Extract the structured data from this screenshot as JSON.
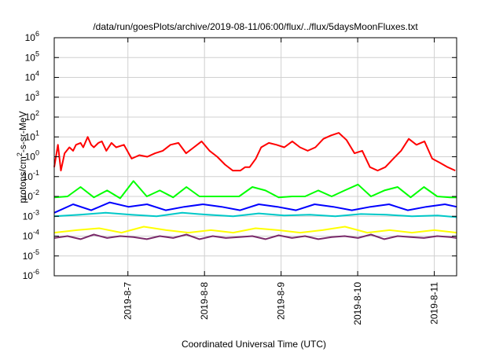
{
  "chart_data": {
    "type": "line",
    "title": "/data/run/goesPlots/archive/2019-08-11/06:00/flux/../flux/5daysMoonFluxes.txt",
    "xlabel": "Coordinated Universal Time (UTC)",
    "ylabel": {
      "prefix": "protons/cm",
      "sup": "2",
      "suffix": "-s-sr-MeV"
    },
    "x_unit": "days (UTC)",
    "xlim": [
      "2019-08-06 00:55",
      "2019-08-11 07:00"
    ],
    "x_ticks": [
      {
        "date": "2019-08-07 00:00",
        "label": "2019-8-7"
      },
      {
        "date": "2019-08-08 00:00",
        "label": "2019-8-8"
      },
      {
        "date": "2019-08-09 00:00",
        "label": "2019-8-9"
      },
      {
        "date": "2019-08-10 00:00",
        "label": "2019-8-10"
      },
      {
        "date": "2019-08-11 00:00",
        "label": "2019-8-11"
      }
    ],
    "y_scale": "log",
    "ylim": [
      1e-06,
      1000000.0
    ],
    "y_ticks": [
      {
        "exp": -6,
        "base": "10",
        "sup": "-6"
      },
      {
        "exp": -5,
        "base": "10",
        "sup": "-5"
      },
      {
        "exp": -4,
        "base": "10",
        "sup": "-4"
      },
      {
        "exp": -3,
        "base": "10",
        "sup": "-3"
      },
      {
        "exp": -2,
        "base": "10",
        "sup": "-2"
      },
      {
        "exp": -1,
        "base": "10",
        "sup": "-1"
      },
      {
        "exp": 0,
        "base": "10",
        "sup": "0"
      },
      {
        "exp": 1,
        "base": "10",
        "sup": "1"
      },
      {
        "exp": 2,
        "base": "10",
        "sup": "2"
      },
      {
        "exp": 3,
        "base": "10",
        "sup": "3"
      },
      {
        "exp": 4,
        "base": "10",
        "sup": "4"
      },
      {
        "exp": 5,
        "base": "10",
        "sup": "5"
      },
      {
        "exp": 6,
        "base": "10",
        "sup": "6"
      }
    ],
    "grid": true,
    "legend": "none",
    "series": [
      {
        "color": "#ff0000",
        "x": [
          "2019-08-06 00:55",
          "2019-08-06 02:05",
          "2019-08-06 03:00",
          "2019-08-06 04:10",
          "2019-08-06 05:40",
          "2019-08-06 06:50",
          "2019-08-06 07:45",
          "2019-08-06 09:10",
          "2019-08-06 10:00",
          "2019-08-06 11:25",
          "2019-08-06 12:30",
          "2019-08-06 13:20",
          "2019-08-06 14:45",
          "2019-08-06 15:50",
          "2019-08-06 17:15",
          "2019-08-06 18:50",
          "2019-08-06 20:20",
          "2019-08-06 22:45",
          "2019-08-07 01:10",
          "2019-08-07 03:35",
          "2019-08-07 06:05",
          "2019-08-07 08:30",
          "2019-08-07 10:55",
          "2019-08-07 13:20",
          "2019-08-07 15:50",
          "2019-08-07 18:15",
          "2019-08-07 20:40",
          "2019-08-07 23:05",
          "2019-08-08 01:35",
          "2019-08-08 04:00",
          "2019-08-08 06:25",
          "2019-08-08 08:50",
          "2019-08-08 10:20",
          "2019-08-08 11:15",
          "2019-08-08 12:45",
          "2019-08-08 14:10",
          "2019-08-08 16:05",
          "2019-08-08 17:45",
          "2019-08-08 20:10",
          "2019-08-08 22:35",
          "2019-08-09 01:00",
          "2019-08-09 03:30",
          "2019-08-09 05:55",
          "2019-08-09 08:20",
          "2019-08-09 10:45",
          "2019-08-09 13:15",
          "2019-08-09 15:40",
          "2019-08-09 18:05",
          "2019-08-09 20:30",
          "2019-08-09 23:00",
          "2019-08-10 01:25",
          "2019-08-10 03:50",
          "2019-08-10 06:15",
          "2019-08-10 08:40",
          "2019-08-10 11:10",
          "2019-08-10 13:35",
          "2019-08-10 16:00",
          "2019-08-10 18:25",
          "2019-08-10 20:55",
          "2019-08-10 23:20",
          "2019-08-11 01:45",
          "2019-08-11 04:10",
          "2019-08-11 06:35"
        ],
        "values": [
          0.3,
          4,
          0.2,
          1.5,
          3,
          2,
          4,
          5,
          3,
          10,
          4,
          3,
          5,
          6,
          2,
          5,
          3,
          4,
          0.8,
          1.2,
          1,
          1.5,
          2,
          4,
          5,
          1.5,
          3,
          6,
          2,
          1,
          0.4,
          0.2,
          0.2,
          0.2,
          0.3,
          0.3,
          0.8,
          3,
          5,
          4,
          3,
          6,
          3,
          2,
          3,
          8,
          12,
          16,
          7,
          1.5,
          2,
          0.3,
          0.2,
          0.3,
          0.8,
          2,
          8,
          4,
          6,
          0.8,
          0.5,
          0.3,
          0.2
        ]
      },
      {
        "color": "#00ff00",
        "x": [
          "2019-08-06 00:55",
          "2019-08-06 05:05",
          "2019-08-06 09:10",
          "2019-08-06 13:20",
          "2019-08-06 17:30",
          "2019-08-06 21:35",
          "2019-08-07 01:45",
          "2019-08-07 05:55",
          "2019-08-07 10:00",
          "2019-08-07 14:10",
          "2019-08-07 18:20",
          "2019-08-07 22:25",
          "2019-08-08 02:35",
          "2019-08-08 06:40",
          "2019-08-08 10:50",
          "2019-08-08 15:00",
          "2019-08-08 19:05",
          "2019-08-08 23:15",
          "2019-08-09 03:25",
          "2019-08-09 07:30",
          "2019-08-09 11:40",
          "2019-08-09 15:50",
          "2019-08-09 19:55",
          "2019-08-10 00:05",
          "2019-08-10 04:10",
          "2019-08-10 08:20",
          "2019-08-10 12:30",
          "2019-08-10 16:35",
          "2019-08-10 20:45",
          "2019-08-11 00:55",
          "2019-08-11 05:00",
          "2019-08-11 07:00"
        ],
        "values": [
          0.009,
          0.01,
          0.03,
          0.009,
          0.02,
          0.008,
          0.06,
          0.01,
          0.02,
          0.009,
          0.03,
          0.01,
          0.01,
          0.01,
          0.01,
          0.03,
          0.02,
          0.009,
          0.01,
          0.01,
          0.02,
          0.01,
          0.02,
          0.04,
          0.01,
          0.02,
          0.03,
          0.009,
          0.03,
          0.01,
          0.009,
          0.009
        ]
      },
      {
        "color": "#0000ff",
        "x": [
          "2019-08-06 00:55",
          "2019-08-06 06:50",
          "2019-08-06 12:30",
          "2019-08-06 18:20",
          "2019-08-07 00:10",
          "2019-08-07 06:00",
          "2019-08-07 11:50",
          "2019-08-07 17:40",
          "2019-08-07 23:30",
          "2019-08-08 05:20",
          "2019-08-08 11:10",
          "2019-08-08 17:00",
          "2019-08-08 22:50",
          "2019-08-09 04:40",
          "2019-08-09 10:30",
          "2019-08-09 16:20",
          "2019-08-09 22:10",
          "2019-08-10 04:00",
          "2019-08-10 09:50",
          "2019-08-10 15:40",
          "2019-08-10 21:30",
          "2019-08-11 03:20",
          "2019-08-11 07:00"
        ],
        "values": [
          0.0015,
          0.004,
          0.002,
          0.005,
          0.003,
          0.004,
          0.002,
          0.003,
          0.004,
          0.003,
          0.002,
          0.004,
          0.003,
          0.002,
          0.004,
          0.003,
          0.002,
          0.003,
          0.004,
          0.002,
          0.003,
          0.004,
          0.003
        ]
      },
      {
        "color": "#00c8c8",
        "x": [
          "2019-08-06 00:55",
          "2019-08-06 09:00",
          "2019-08-06 17:00",
          "2019-08-07 01:00",
          "2019-08-07 09:00",
          "2019-08-07 17:00",
          "2019-08-08 01:00",
          "2019-08-08 09:00",
          "2019-08-08 17:00",
          "2019-08-09 01:00",
          "2019-08-09 09:00",
          "2019-08-09 17:00",
          "2019-08-10 01:00",
          "2019-08-10 09:00",
          "2019-08-10 17:00",
          "2019-08-11 01:00",
          "2019-08-11 07:00"
        ],
        "values": [
          0.001,
          0.0012,
          0.0015,
          0.0012,
          0.001,
          0.0015,
          0.0012,
          0.001,
          0.0014,
          0.0011,
          0.0012,
          0.001,
          0.0013,
          0.0012,
          0.001,
          0.0011,
          0.0009
        ]
      },
      {
        "color": "#ffff00",
        "x": [
          "2019-08-06 00:55",
          "2019-08-06 08:00",
          "2019-08-06 15:00",
          "2019-08-06 22:00",
          "2019-08-07 05:00",
          "2019-08-07 12:00",
          "2019-08-07 19:00",
          "2019-08-08 02:00",
          "2019-08-08 09:00",
          "2019-08-08 16:00",
          "2019-08-08 23:00",
          "2019-08-09 06:00",
          "2019-08-09 13:00",
          "2019-08-09 20:00",
          "2019-08-10 03:00",
          "2019-08-10 10:00",
          "2019-08-10 17:00",
          "2019-08-11 00:00",
          "2019-08-11 07:00"
        ],
        "values": [
          0.00015,
          0.0002,
          0.00025,
          0.00015,
          0.0003,
          0.0002,
          0.00015,
          0.0002,
          0.00015,
          0.00025,
          0.0002,
          0.00015,
          0.0002,
          0.0003,
          0.00015,
          0.0002,
          0.00015,
          0.0002,
          0.00015
        ]
      },
      {
        "color": "#7a2a6a",
        "x": [
          "2019-08-06 00:55",
          "2019-08-06 05:05",
          "2019-08-06 09:10",
          "2019-08-06 13:20",
          "2019-08-06 17:30",
          "2019-08-06 21:35",
          "2019-08-07 01:45",
          "2019-08-07 05:55",
          "2019-08-07 10:00",
          "2019-08-07 14:10",
          "2019-08-07 18:20",
          "2019-08-07 22:25",
          "2019-08-08 02:35",
          "2019-08-08 06:40",
          "2019-08-08 10:50",
          "2019-08-08 15:00",
          "2019-08-08 19:05",
          "2019-08-08 23:15",
          "2019-08-09 03:25",
          "2019-08-09 07:30",
          "2019-08-09 11:40",
          "2019-08-09 15:50",
          "2019-08-09 19:55",
          "2019-08-10 00:05",
          "2019-08-10 04:10",
          "2019-08-10 08:20",
          "2019-08-10 12:30",
          "2019-08-10 16:35",
          "2019-08-10 20:45",
          "2019-08-11 00:55",
          "2019-08-11 05:00",
          "2019-08-11 07:00"
        ],
        "values": [
          8e-05,
          0.0001,
          7e-05,
          0.00012,
          8e-05,
          0.0001,
          9e-05,
          7e-05,
          0.0001,
          8e-05,
          0.00012,
          7e-05,
          0.0001,
          8e-05,
          9e-05,
          0.0001,
          7e-05,
          0.00011,
          8e-05,
          0.0001,
          7e-05,
          9e-05,
          0.0001,
          8e-05,
          0.00012,
          7e-05,
          0.0001,
          9e-05,
          8e-05,
          0.0001,
          9e-05,
          8e-05
        ]
      }
    ]
  }
}
